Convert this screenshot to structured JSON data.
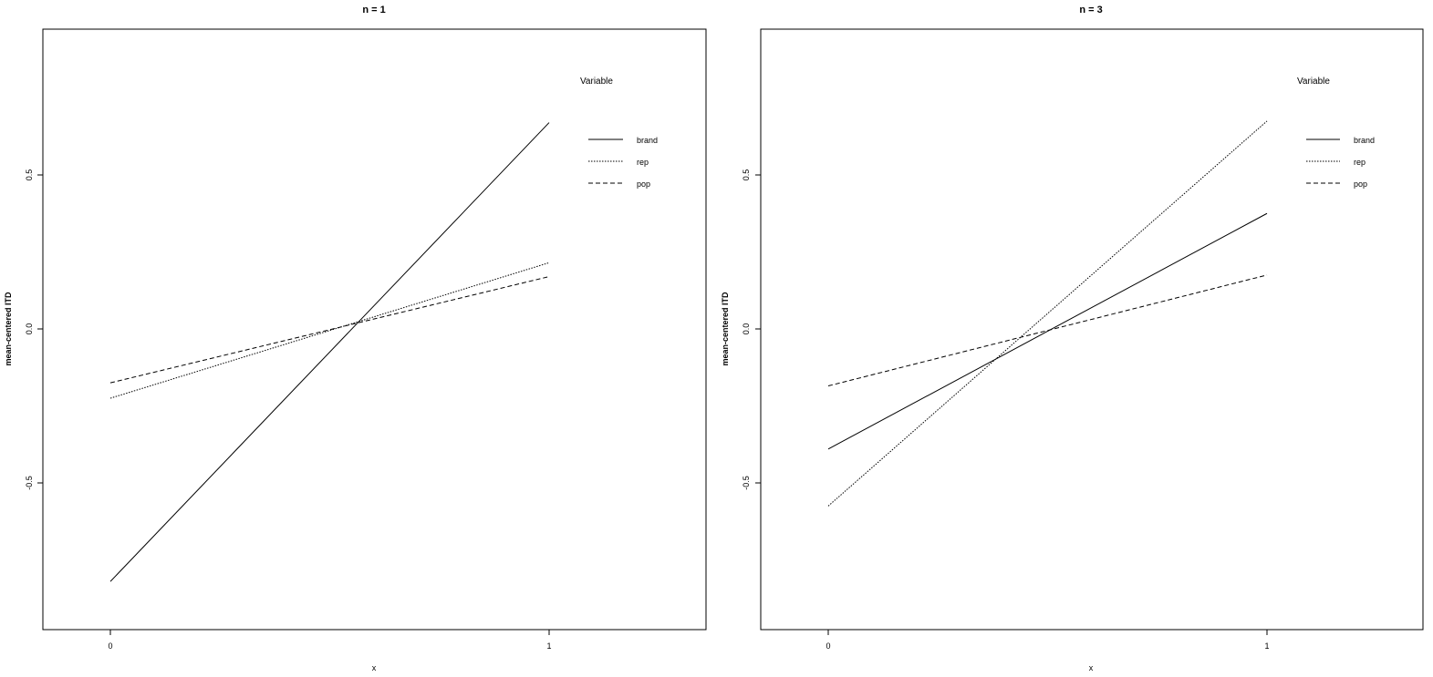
{
  "chart_data": [
    {
      "type": "line",
      "title": "n = 1",
      "xlabel": "x",
      "ylabel": "mean-centered ITD",
      "xlim": [
        -0.15,
        1.36
      ],
      "ylim": [
        -0.97,
        0.97
      ],
      "x": [
        0,
        1
      ],
      "x_ticks": [
        "0",
        "1"
      ],
      "y_ticks": [
        "-0.5",
        "0.0",
        "0.5"
      ],
      "legend": {
        "title": "Variable",
        "position": "top-right"
      },
      "series": [
        {
          "name": "brand",
          "line_style": "solid",
          "values": [
            -0.82,
            0.67
          ]
        },
        {
          "name": "rep",
          "line_style": "dotted",
          "values": [
            -0.225,
            0.215
          ]
        },
        {
          "name": "pop",
          "line_style": "dashed",
          "values": [
            -0.175,
            0.17
          ]
        }
      ]
    },
    {
      "type": "line",
      "title": "n = 3",
      "xlabel": "x",
      "ylabel": "mean-centered ITD",
      "xlim": [
        -0.15,
        1.36
      ],
      "ylim": [
        -0.97,
        0.97
      ],
      "x": [
        0,
        1
      ],
      "x_ticks": [
        "0",
        "1"
      ],
      "y_ticks": [
        "-0.5",
        "0.0",
        "0.5"
      ],
      "legend": {
        "title": "Variable",
        "position": "top-right"
      },
      "series": [
        {
          "name": "brand",
          "line_style": "solid",
          "values": [
            -0.39,
            0.375
          ]
        },
        {
          "name": "rep",
          "line_style": "dotted",
          "values": [
            -0.575,
            0.675
          ]
        },
        {
          "name": "pop",
          "line_style": "dashed",
          "values": [
            -0.185,
            0.175
          ]
        }
      ]
    }
  ]
}
